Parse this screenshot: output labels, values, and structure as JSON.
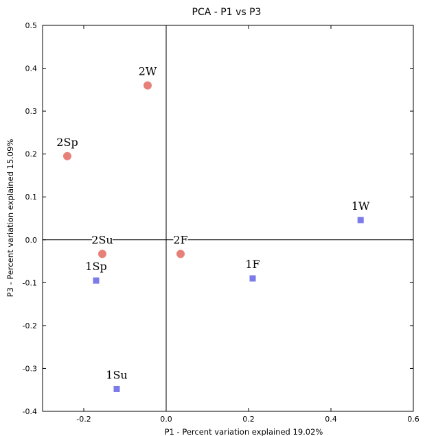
{
  "chart_data": {
    "type": "scatter",
    "title": "PCA - P1 vs P3",
    "xlabel": "P1 - Percent variation explained 19.02%",
    "ylabel": "P3 - Percent variation explained 15.09%",
    "xlim": [
      -0.3,
      0.6
    ],
    "ylim": [
      -0.4,
      0.5
    ],
    "xticks": [
      "-0.2",
      "0.0",
      "0.2",
      "0.4",
      "0.6"
    ],
    "yticks": [
      "0.5",
      "0.4",
      "0.3",
      "0.2",
      "0.1",
      "0.0",
      "-0.1",
      "-0.2",
      "-0.3",
      "-0.4"
    ],
    "grid": false,
    "series": [
      {
        "marker": "circle",
        "color": "#e8807a",
        "points": [
          {
            "label": "2W",
            "x": -0.045,
            "y": 0.36
          },
          {
            "label": "2Sp",
            "x": -0.24,
            "y": 0.195
          },
          {
            "label": "2Su",
            "x": -0.155,
            "y": -0.033
          },
          {
            "label": "2F",
            "x": 0.035,
            "y": -0.033
          }
        ]
      },
      {
        "marker": "square",
        "color": "#7b7bea",
        "points": [
          {
            "label": "1W",
            "x": 0.472,
            "y": 0.046
          },
          {
            "label": "1F",
            "x": 0.21,
            "y": -0.09
          },
          {
            "label": "1Sp",
            "x": -0.17,
            "y": -0.095
          },
          {
            "label": "1Su",
            "x": -0.12,
            "y": -0.348
          }
        ]
      }
    ]
  }
}
